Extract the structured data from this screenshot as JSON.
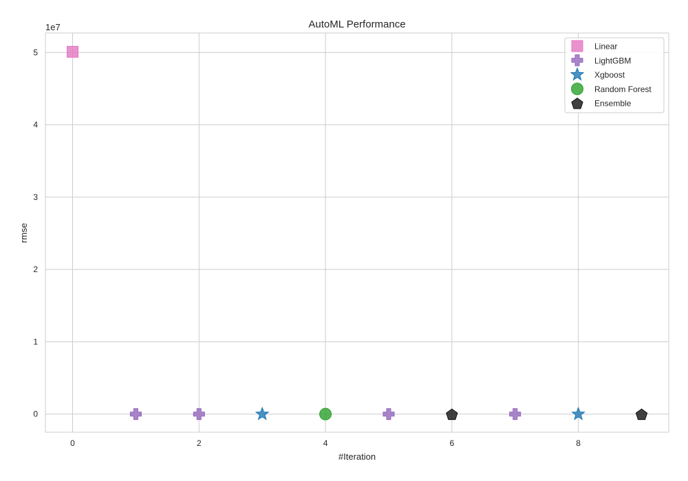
{
  "chart_data": {
    "type": "scatter",
    "title": "AutoML Performance",
    "xlabel": "#Iteration",
    "ylabel": "rmse",
    "offset_label": "1e7",
    "xlim": [
      -0.43,
      9.43
    ],
    "ylim": [
      -2500000,
      52700000
    ],
    "x_ticks": [
      0,
      2,
      4,
      6,
      8
    ],
    "y_ticks": [
      0,
      10000000,
      20000000,
      30000000,
      40000000,
      50000000
    ],
    "y_tick_labels": [
      "0",
      "1",
      "2",
      "3",
      "4",
      "5"
    ],
    "grid": true,
    "legend_position": "top-right",
    "series": [
      {
        "name": "Linear",
        "marker": "square",
        "color": "#e377c2",
        "points": [
          [
            0,
            50100000
          ]
        ]
      },
      {
        "name": "LightGBM",
        "marker": "plus",
        "color": "#9467bd",
        "points": [
          [
            1,
            0
          ],
          [
            2,
            0
          ],
          [
            5,
            0
          ],
          [
            7,
            0
          ]
        ]
      },
      {
        "name": "Xgboost",
        "marker": "star",
        "color": "#1f77b4",
        "points": [
          [
            3,
            0
          ],
          [
            8,
            0
          ]
        ]
      },
      {
        "name": "Random Forest",
        "marker": "circle",
        "color": "#2ca02c",
        "points": [
          [
            4,
            0
          ]
        ]
      },
      {
        "name": "Ensemble",
        "marker": "pentagon",
        "color": "#111111",
        "points": [
          [
            6,
            0
          ],
          [
            9,
            0
          ]
        ]
      }
    ]
  }
}
